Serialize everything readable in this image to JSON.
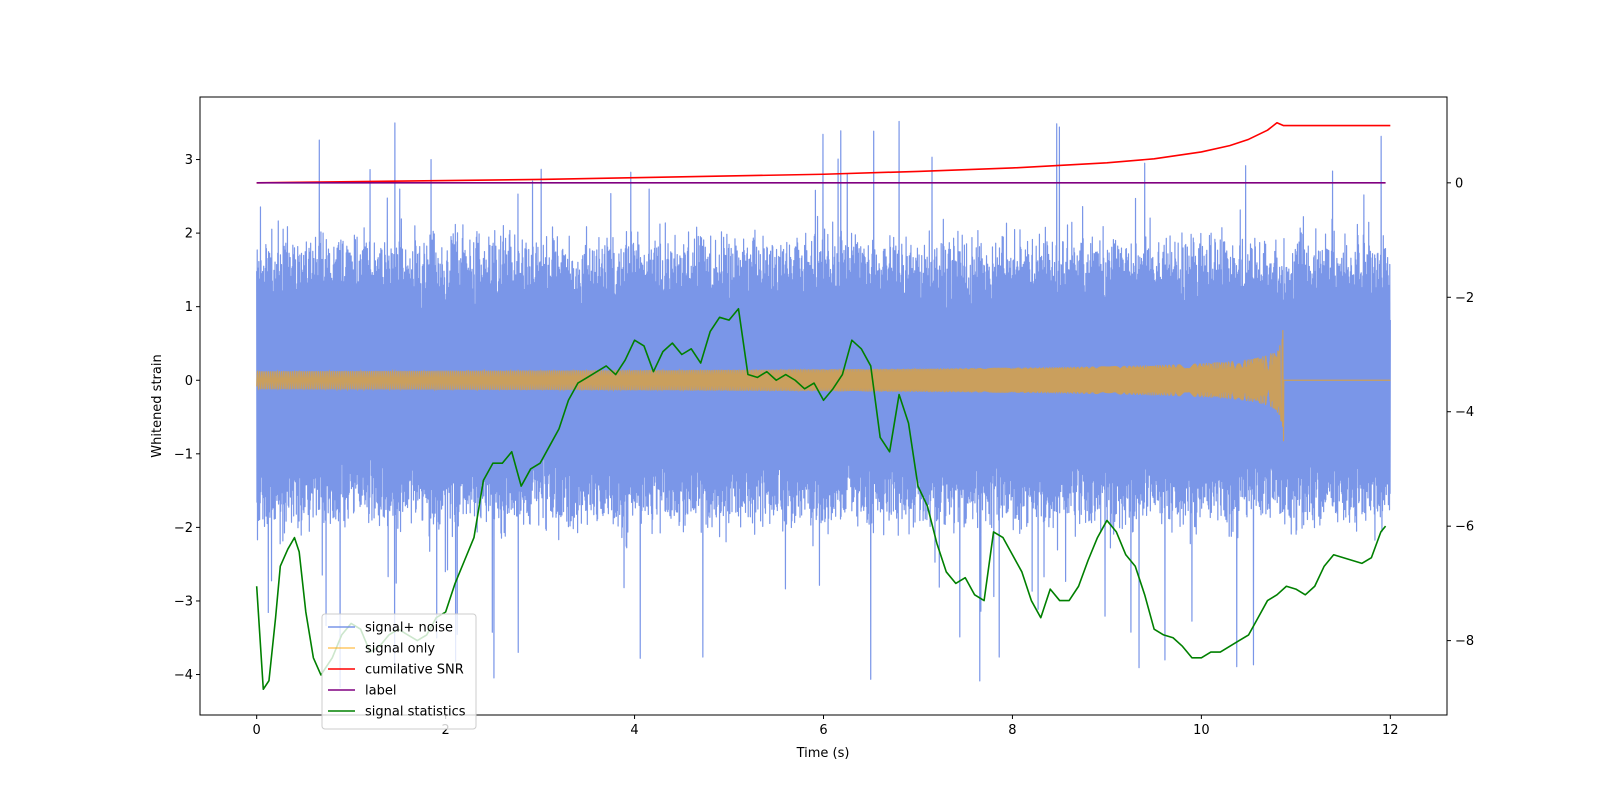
{
  "chart_data": {
    "type": "line",
    "xlabel": "Time (s)",
    "ylabel": "Whitened strain",
    "y2label": "",
    "xlim": [
      -0.6,
      12.6
    ],
    "ylim": [
      -4.55,
      3.85
    ],
    "y2lim": [
      -9.3,
      1.5
    ],
    "xticks": [
      0,
      2,
      4,
      6,
      8,
      10,
      12
    ],
    "yticks": [
      -4,
      -3,
      -2,
      -1,
      0,
      1,
      2,
      3
    ],
    "y2ticks": [
      -8,
      -6,
      -4,
      -2,
      0
    ],
    "legend_position": "lower-left",
    "noise": {
      "name": "signal+ noise",
      "color": "#6f8de6",
      "t_start": 0,
      "t_end": 12,
      "mean": 0,
      "band_low": -1.6,
      "band_high": 1.55,
      "peak_max": 3.6,
      "peak_min": -4.2
    },
    "signal": {
      "name": "signal only",
      "color": "#ffa500",
      "t_start": 0,
      "t_merge": 10.87,
      "t_end": 12,
      "peak_amplitude": 1.0
    },
    "series": [
      {
        "name": "cumilative SNR",
        "color": "#ff0000",
        "axis": "right",
        "x": [
          0,
          1,
          2,
          3,
          4,
          5,
          6,
          7,
          8,
          9,
          9.5,
          10,
          10.3,
          10.5,
          10.7,
          10.8,
          10.87,
          11,
          12
        ],
        "y": [
          0.0,
          0.02,
          0.04,
          0.06,
          0.09,
          0.12,
          0.15,
          0.2,
          0.26,
          0.35,
          0.42,
          0.54,
          0.65,
          0.76,
          0.92,
          1.05,
          1.0,
          1.0,
          1.0
        ]
      },
      {
        "name": "label",
        "color": "#800080",
        "axis": "right",
        "x": [
          0,
          11.95
        ],
        "y": [
          0,
          0
        ]
      },
      {
        "name": "signal statistics",
        "color": "#008000",
        "axis": "right",
        "x": [
          0,
          0.07,
          0.13,
          0.2,
          0.25,
          0.33,
          0.4,
          0.45,
          0.52,
          0.6,
          0.68,
          0.8,
          0.9,
          1.0,
          1.1,
          1.2,
          1.3,
          1.4,
          1.5,
          1.6,
          1.7,
          1.8,
          1.9,
          2.0,
          2.1,
          2.2,
          2.3,
          2.4,
          2.5,
          2.6,
          2.7,
          2.8,
          2.9,
          3.0,
          3.1,
          3.2,
          3.3,
          3.4,
          3.5,
          3.6,
          3.7,
          3.8,
          3.9,
          4.0,
          4.1,
          4.2,
          4.3,
          4.4,
          4.5,
          4.6,
          4.7,
          4.8,
          4.9,
          5.0,
          5.1,
          5.2,
          5.3,
          5.4,
          5.5,
          5.6,
          5.7,
          5.8,
          5.9,
          6.0,
          6.1,
          6.2,
          6.3,
          6.4,
          6.5,
          6.6,
          6.7,
          6.8,
          6.9,
          7.0,
          7.1,
          7.2,
          7.3,
          7.4,
          7.5,
          7.6,
          7.7,
          7.8,
          7.9,
          8.0,
          8.1,
          8.2,
          8.3,
          8.4,
          8.5,
          8.6,
          8.7,
          8.8,
          8.9,
          9.0,
          9.1,
          9.2,
          9.3,
          9.4,
          9.5,
          9.6,
          9.7,
          9.8,
          9.9,
          10.0,
          10.1,
          10.2,
          10.3,
          10.4,
          10.5,
          10.6,
          10.7,
          10.8,
          10.9,
          11.0,
          11.1,
          11.2,
          11.3,
          11.4,
          11.5,
          11.6,
          11.7,
          11.8,
          11.9,
          11.95
        ],
        "y": [
          -7.05,
          -8.85,
          -8.7,
          -7.6,
          -6.7,
          -6.4,
          -6.2,
          -6.45,
          -7.5,
          -8.3,
          -8.6,
          -8.3,
          -7.9,
          -7.7,
          -7.8,
          -8.2,
          -8.1,
          -7.9,
          -7.8,
          -7.9,
          -8.0,
          -7.9,
          -7.6,
          -7.5,
          -7.0,
          -6.6,
          -6.2,
          -5.2,
          -4.9,
          -4.9,
          -4.7,
          -5.3,
          -5.0,
          -4.9,
          -4.6,
          -4.3,
          -3.8,
          -3.5,
          -3.4,
          -3.3,
          -3.2,
          -3.35,
          -3.1,
          -2.75,
          -2.85,
          -3.3,
          -2.95,
          -2.8,
          -3.0,
          -2.9,
          -3.15,
          -2.6,
          -2.35,
          -2.4,
          -2.2,
          -3.35,
          -3.4,
          -3.3,
          -3.45,
          -3.35,
          -3.45,
          -3.6,
          -3.5,
          -3.8,
          -3.6,
          -3.35,
          -2.75,
          -2.9,
          -3.2,
          -4.45,
          -4.7,
          -3.7,
          -4.2,
          -5.3,
          -5.65,
          -6.3,
          -6.8,
          -7.0,
          -6.9,
          -7.2,
          -7.3,
          -6.1,
          -6.2,
          -6.5,
          -6.8,
          -7.3,
          -7.6,
          -7.1,
          -7.3,
          -7.3,
          -7.05,
          -6.6,
          -6.2,
          -5.9,
          -6.1,
          -6.5,
          -6.7,
          -7.2,
          -7.8,
          -7.9,
          -7.95,
          -8.1,
          -8.3,
          -8.3,
          -8.2,
          -8.2,
          -8.1,
          -8.0,
          -7.9,
          -7.6,
          -7.3,
          -7.2,
          -7.05,
          -7.1,
          -7.2,
          -7.05,
          -6.7,
          -6.5,
          -6.55,
          -6.6,
          -6.65,
          -6.55,
          -6.1,
          -6.0
        ]
      }
    ]
  }
}
